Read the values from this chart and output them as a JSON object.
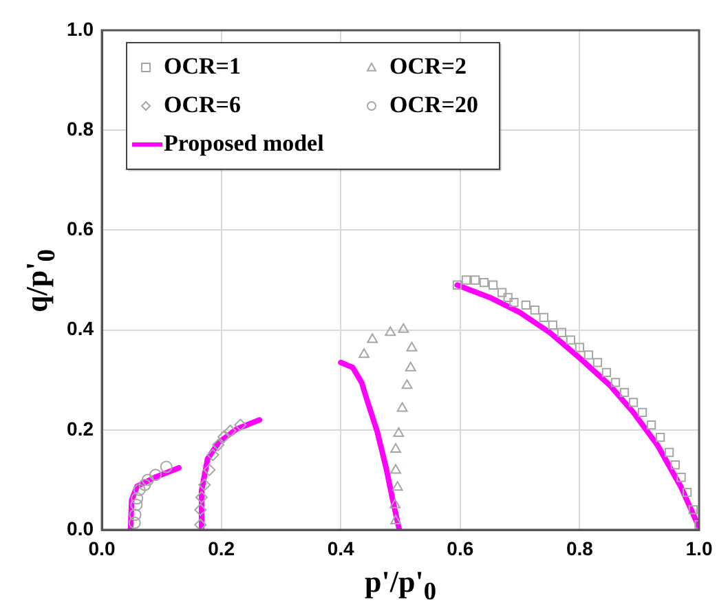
{
  "chart_data": {
    "type": "scatter",
    "xlabel": "p'/p'$_{0}$",
    "ylabel": "q/p'$_{0}$",
    "xlim": [
      0,
      1
    ],
    "ylim": [
      0,
      1
    ],
    "xticks": [
      {
        "value": 0,
        "label": "0.0"
      },
      0.2,
      0.4,
      0.6,
      0.8,
      {
        "value": 1,
        "label": "1.0"
      }
    ],
    "yticks": [
      {
        "value": 0,
        "label": "0.0"
      },
      0.2,
      0.4,
      0.6,
      0.8,
      {
        "value": 1,
        "label": "1.0"
      }
    ],
    "grid": true,
    "legend": "top left",
    "series": [
      {
        "name": "OCR=1",
        "marker": "square",
        "color": "#a6a6a6",
        "x": [
          0.595,
          0.61,
          0.625,
          0.64,
          0.655,
          0.67,
          0.68,
          0.69,
          0.71,
          0.725,
          0.74,
          0.755,
          0.77,
          0.785,
          0.8,
          0.815,
          0.83,
          0.845,
          0.86,
          0.875,
          0.89,
          0.905,
          0.92,
          0.935,
          0.95,
          0.96,
          0.97,
          0.98,
          0.99,
          1.0
        ],
        "values": [
          0.49,
          0.5,
          0.5,
          0.495,
          0.49,
          0.475,
          0.465,
          0.455,
          0.45,
          0.44,
          0.425,
          0.41,
          0.395,
          0.38,
          0.365,
          0.35,
          0.335,
          0.315,
          0.295,
          0.275,
          0.255,
          0.235,
          0.21,
          0.185,
          0.155,
          0.13,
          0.105,
          0.075,
          0.04,
          0.01
        ]
      },
      {
        "name": "OCR=2",
        "marker": "triangle",
        "color": "#a6a6a6",
        "x": [
          0.439,
          0.453,
          0.483,
          0.505,
          0.519,
          0.517,
          0.511,
          0.503,
          0.497,
          0.492,
          0.492,
          0.495,
          0.491,
          0.492
        ],
        "values": [
          0.351,
          0.381,
          0.395,
          0.401,
          0.364,
          0.324,
          0.289,
          0.243,
          0.193,
          0.161,
          0.119,
          0.085,
          0.05,
          0.018
        ]
      },
      {
        "name": "OCR=6",
        "marker": "diamond",
        "color": "#a6a6a6",
        "x": [
          0.165,
          0.165,
          0.167,
          0.172,
          0.18,
          0.186,
          0.195,
          0.204,
          0.215,
          0.232
        ],
        "values": [
          0.01,
          0.04,
          0.065,
          0.09,
          0.12,
          0.15,
          0.17,
          0.186,
          0.198,
          0.21
        ]
      },
      {
        "name": "OCR=20",
        "marker": "circle",
        "color": "#a6a6a6",
        "x": [
          0.055,
          0.056,
          0.058,
          0.059,
          0.063,
          0.072,
          0.077,
          0.09,
          0.108
        ],
        "values": [
          0.014,
          0.03,
          0.05,
          0.063,
          0.08,
          0.09,
          0.1,
          0.11,
          0.126
        ]
      },
      {
        "name": "Proposed model",
        "type": "line",
        "marker": "none",
        "color": "#ff00ff",
        "x": [
          0.048,
          0.05,
          0.059,
          0.089,
          0.129,
          null,
          0.167,
          0.167,
          0.177,
          0.195,
          0.226,
          0.264,
          null,
          0.4,
          0.42,
          0.435,
          0.445,
          0.461,
          0.476,
          0.487,
          0.498,
          null,
          0.595,
          0.65,
          0.7,
          0.75,
          0.8,
          0.85,
          0.89,
          0.93,
          0.97,
          1.0
        ],
        "values": [
          0,
          0.06,
          0.087,
          0.105,
          0.124,
          null,
          0,
          0.078,
          0.142,
          0.174,
          0.202,
          0.22,
          null,
          0.335,
          0.325,
          0.295,
          0.256,
          0.197,
          0.124,
          0.06,
          0,
          null,
          0.49,
          0.465,
          0.435,
          0.395,
          0.344,
          0.29,
          0.235,
          0.17,
          0.085,
          0.005
        ]
      }
    ]
  }
}
